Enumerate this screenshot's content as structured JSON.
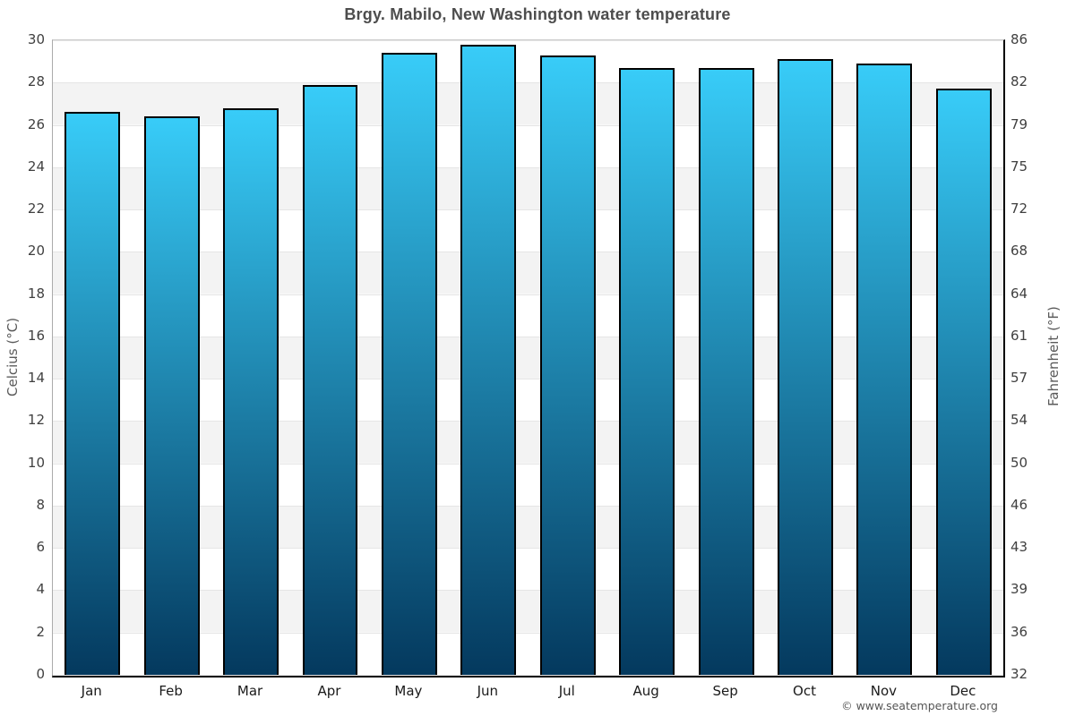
{
  "title": "Brgy. Mabilo, New Washington water temperature",
  "footer": "© www.seatemperature.org",
  "colors": {
    "bar_gradient_top": "#38CCF8",
    "bar_gradient_bottom": "#04395E",
    "bar_border": "#000000",
    "band_gray": "#f3f3f3",
    "gridline": "#e5e5e5",
    "title_text": "#4d4d4d",
    "tick_text": "#404040",
    "axis_title_text": "#5a5a5a"
  },
  "chart_data": {
    "type": "bar",
    "title": "Brgy. Mabilo, New Washington water temperature",
    "categories": [
      "Jan",
      "Feb",
      "Mar",
      "Apr",
      "May",
      "Jun",
      "Jul",
      "Aug",
      "Sep",
      "Oct",
      "Nov",
      "Dec"
    ],
    "values": [
      26.6,
      26.4,
      26.8,
      27.9,
      29.4,
      29.8,
      29.3,
      28.7,
      28.7,
      29.1,
      28.9,
      27.7
    ],
    "value_unit": "°C",
    "xlabel": "",
    "ylabel_left": "Celcius (°C)",
    "ylabel_right": "Fahrenheit (°F)",
    "ylim": [
      0,
      30
    ],
    "yticks_celsius": [
      0,
      2,
      4,
      6,
      8,
      10,
      12,
      14,
      16,
      18,
      20,
      22,
      24,
      26,
      28,
      30
    ],
    "yticks_fahrenheit": [
      32,
      36,
      39,
      43,
      46,
      50,
      54,
      57,
      61,
      64,
      68,
      72,
      75,
      79,
      82,
      86
    ],
    "grid": "alternating horizontal bands every 2°C, gridlines on",
    "legend": "none"
  }
}
